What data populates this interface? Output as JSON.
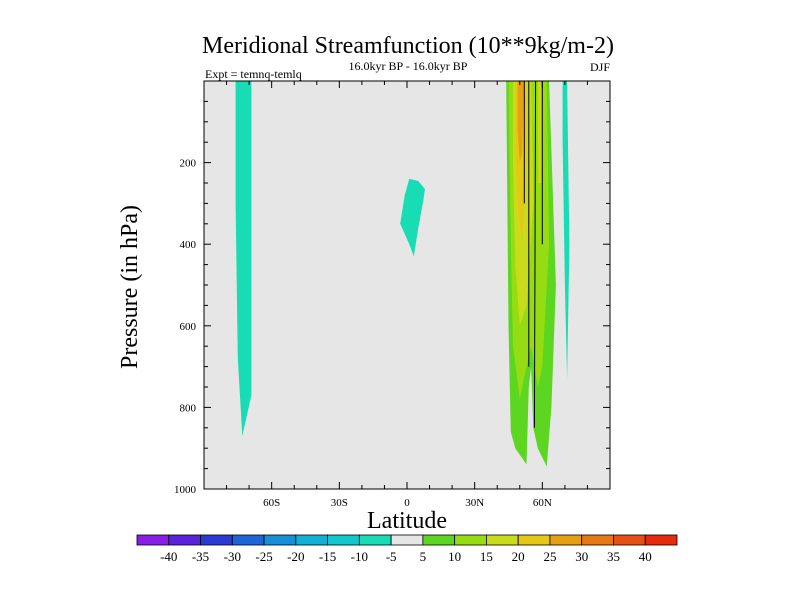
{
  "chart_data": {
    "type": "contour",
    "title": "Meridional Streamfunction (10**9kg/m-2)",
    "subtitle": "16.0kyr BP - 16.0kyr BP",
    "left_label": "Expt = temnq-temlq",
    "right_label": "DJF",
    "xlabel": "Latitude",
    "ylabel": "Pressure (in hPa)",
    "xlim": [
      -90,
      90
    ],
    "ylim": [
      1000,
      0
    ],
    "x_ticks": [
      {
        "value": -60,
        "label": "60S"
      },
      {
        "value": -30,
        "label": "30S"
      },
      {
        "value": 0,
        "label": "0"
      },
      {
        "value": 30,
        "label": "30N"
      },
      {
        "value": 60,
        "label": "60N"
      }
    ],
    "y_ticks": [
      {
        "value": 200,
        "label": "200"
      },
      {
        "value": 400,
        "label": "400"
      },
      {
        "value": 600,
        "label": "600"
      },
      {
        "value": 800,
        "label": "800"
      },
      {
        "value": 1000,
        "label": "1000"
      }
    ],
    "colorbar": {
      "labels": [
        "-40",
        "-35",
        "-30",
        "-25",
        "-20",
        "-15",
        "-10",
        "-5",
        "5",
        "10",
        "15",
        "20",
        "25",
        "30",
        "35",
        "40"
      ],
      "colors": [
        "#8a1ee6",
        "#5a22dc",
        "#2a3ad2",
        "#1f63d8",
        "#1690d8",
        "#13b0d6",
        "#12c8cc",
        "#18dcb4",
        "#e6e6e6",
        "#5cd620",
        "#96dc12",
        "#c8dc1c",
        "#e6c814",
        "#e6a014",
        "#e67814",
        "#e65014",
        "#e62a0e"
      ]
    },
    "regions": [
      {
        "name": "neg-band-south",
        "color": "#18dcb4",
        "points": [
          [
            -76,
            0
          ],
          [
            -69,
            0
          ],
          [
            -69,
            770
          ],
          [
            -70,
            795
          ],
          [
            -73,
            870
          ],
          [
            -75,
            680
          ],
          [
            -76,
            300
          ]
        ]
      },
      {
        "name": "neg-blob-equator",
        "color": "#18dcb4",
        "points": [
          [
            1,
            240
          ],
          [
            5,
            245
          ],
          [
            8,
            265
          ],
          [
            7,
            300
          ],
          [
            5,
            360
          ],
          [
            3,
            430
          ],
          [
            1,
            400
          ],
          [
            -3,
            350
          ],
          [
            -1,
            280
          ]
        ]
      },
      {
        "name": "pos-band-north",
        "color": "#5cd620",
        "points": [
          [
            44,
            0
          ],
          [
            63,
            0
          ],
          [
            66,
            500
          ],
          [
            64,
            800
          ],
          [
            63,
            870
          ],
          [
            62,
            945
          ],
          [
            58,
            900
          ],
          [
            56,
            850
          ],
          [
            55,
            700
          ],
          [
            54,
            750
          ],
          [
            53,
            940
          ],
          [
            48,
            900
          ],
          [
            46,
            860
          ],
          [
            45,
            600
          ]
        ]
      },
      {
        "name": "pos-inner-north",
        "color": "#96dc12",
        "points": [
          [
            45,
            0
          ],
          [
            62,
            0
          ],
          [
            63,
            400
          ],
          [
            60,
            700
          ],
          [
            58,
            750
          ],
          [
            55,
            650
          ],
          [
            53,
            700
          ],
          [
            50,
            780
          ],
          [
            47,
            650
          ],
          [
            46,
            400
          ]
        ]
      },
      {
        "name": "pos-mid-north",
        "color": "#c8dc1c",
        "points": [
          [
            47,
            0
          ],
          [
            55,
            0
          ],
          [
            56,
            300
          ],
          [
            53,
            550
          ],
          [
            50,
            600
          ],
          [
            48,
            450
          ],
          [
            47,
            200
          ]
        ]
      },
      {
        "name": "pos-core-north",
        "color": "#e6c814",
        "points": [
          [
            48,
            0
          ],
          [
            53,
            0
          ],
          [
            53,
            200
          ],
          [
            51,
            400
          ],
          [
            49,
            300
          ],
          [
            48,
            150
          ]
        ]
      },
      {
        "name": "pos-peak-north",
        "color": "#e6a014",
        "points": [
          [
            49,
            0
          ],
          [
            52,
            0
          ],
          [
            51,
            180
          ],
          [
            50,
            200
          ],
          [
            49,
            120
          ]
        ]
      },
      {
        "name": "pos-strip-a",
        "color": "#96dc12",
        "points": [
          [
            57,
            0
          ],
          [
            60,
            0
          ],
          [
            60,
            600
          ],
          [
            58,
            650
          ],
          [
            57,
            400
          ]
        ]
      },
      {
        "name": "pos-strip-b",
        "color": "#c8dc1c",
        "points": [
          [
            58,
            0
          ],
          [
            59.5,
            0
          ],
          [
            59.5,
            250
          ],
          [
            58.2,
            250
          ]
        ]
      },
      {
        "name": "neg-thin-north",
        "color": "#18dcb4",
        "points": [
          [
            69,
            0
          ],
          [
            71,
            0
          ],
          [
            72,
            400
          ],
          [
            71,
            730
          ],
          [
            70,
            500
          ],
          [
            69,
            150
          ]
        ]
      }
    ],
    "dividers": [
      {
        "name": "divider-a",
        "points": [
          [
            54,
            0
          ],
          [
            54,
            700
          ]
        ]
      },
      {
        "name": "divider-b",
        "points": [
          [
            57,
            0
          ],
          [
            56.5,
            850
          ]
        ]
      },
      {
        "name": "divider-c",
        "points": [
          [
            60,
            0
          ],
          [
            60,
            400
          ]
        ]
      },
      {
        "name": "divider-d",
        "points": [
          [
            52,
            0
          ],
          [
            52,
            300
          ]
        ]
      }
    ]
  }
}
